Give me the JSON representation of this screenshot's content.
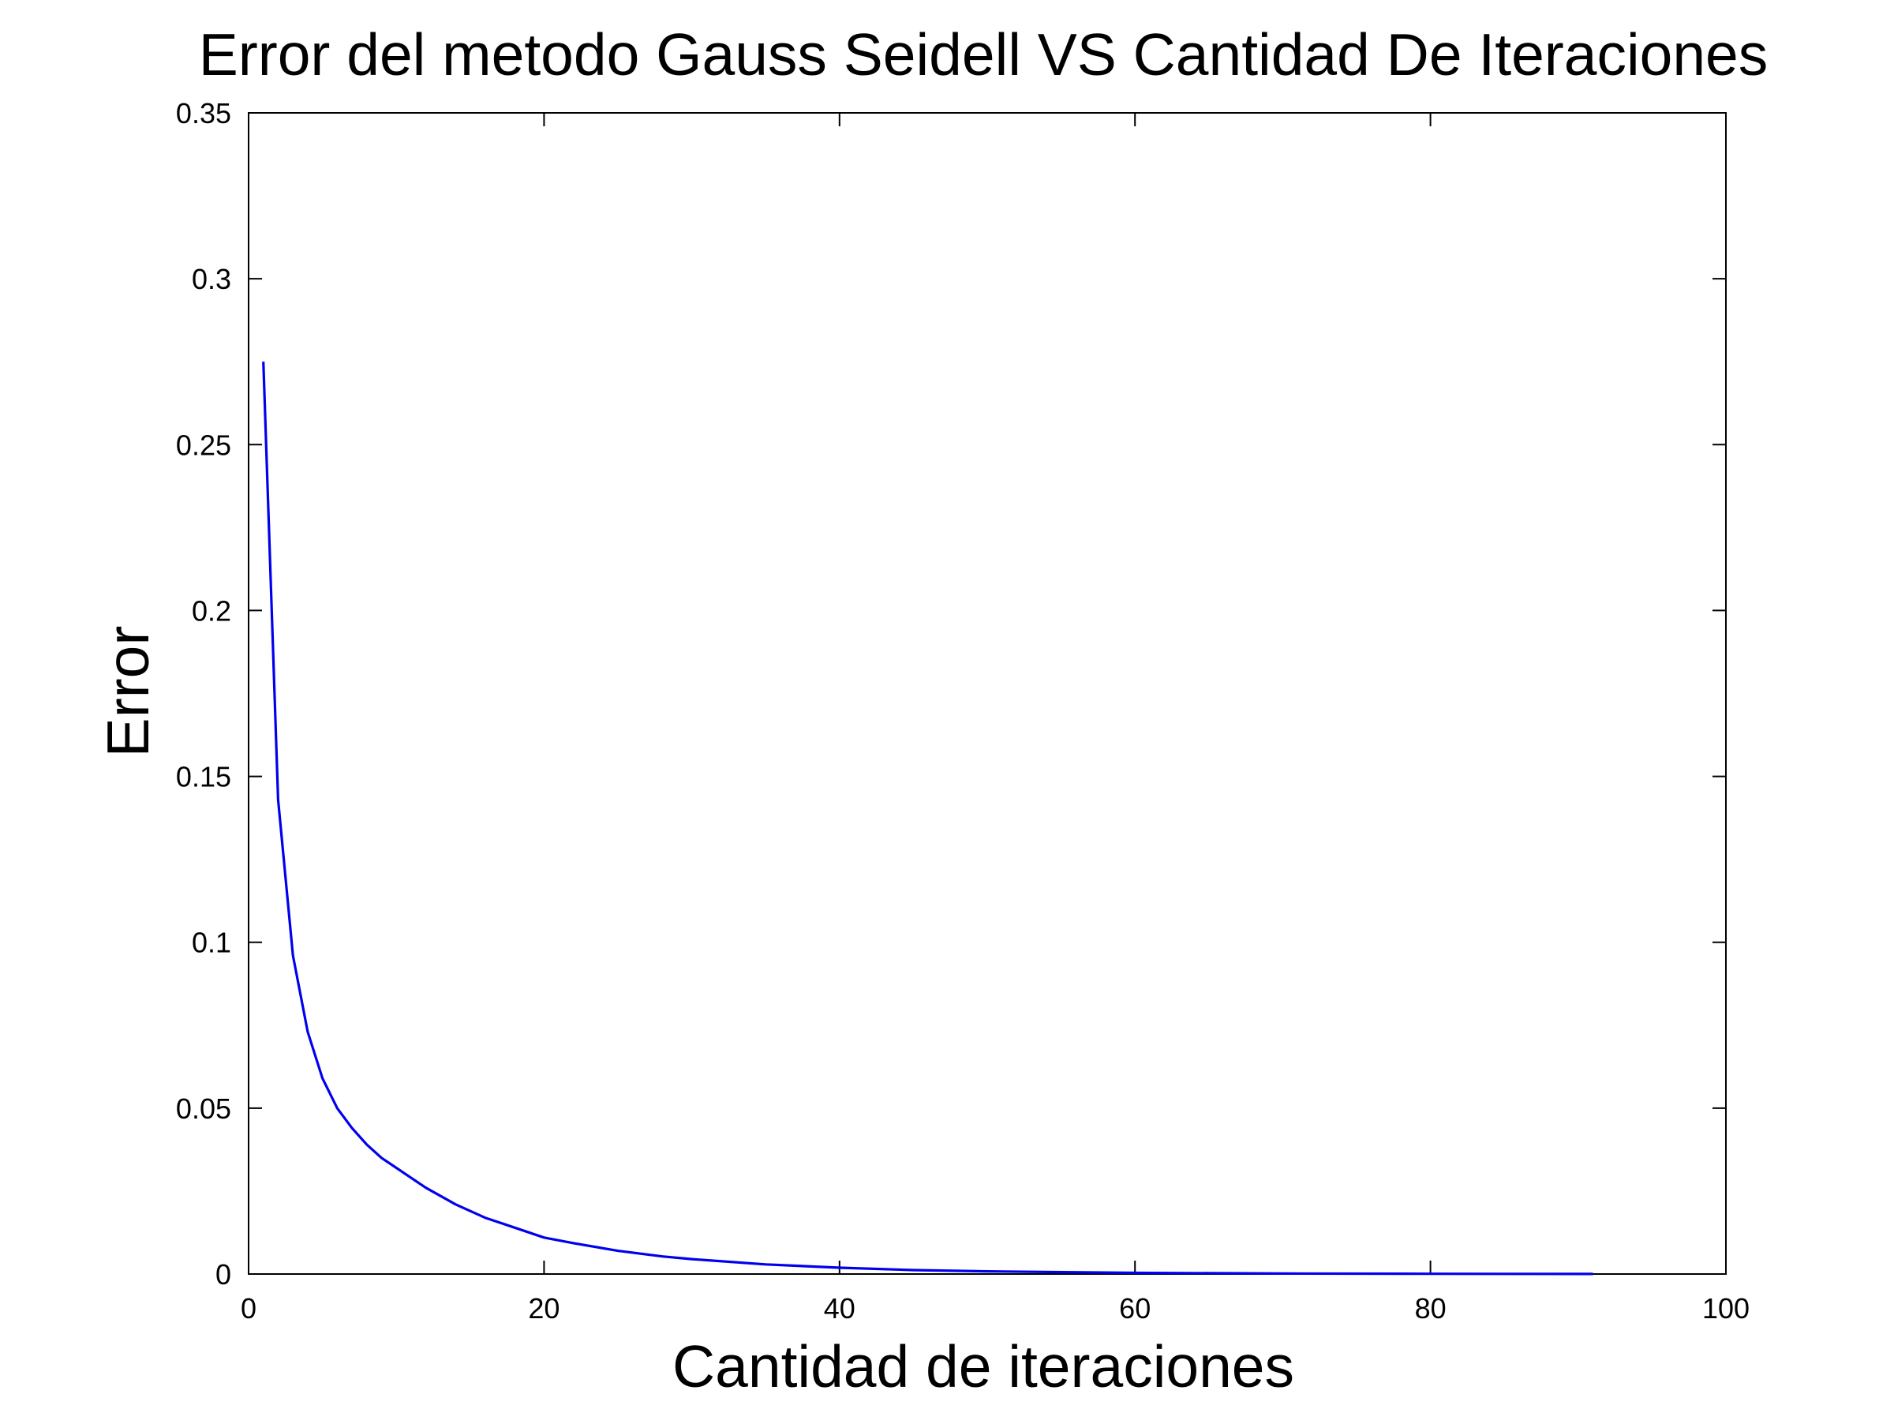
{
  "chart_data": {
    "type": "line",
    "title": "Error del metodo Gauss Seidell VS Cantidad De Iteraciones",
    "xlabel": "Cantidad de iteraciones",
    "ylabel": "Error",
    "xlim": [
      0,
      100
    ],
    "ylim": [
      0,
      0.35
    ],
    "x_ticks": [
      0,
      20,
      40,
      60,
      80,
      100
    ],
    "x_tick_labels": [
      "0",
      "20",
      "40",
      "60",
      "80",
      "100"
    ],
    "y_ticks": [
      0,
      0.05,
      0.1,
      0.15,
      0.2,
      0.25,
      0.3,
      0.35
    ],
    "y_tick_labels": [
      "0",
      "0.05",
      "0.1",
      "0.15",
      "0.2",
      "0.25",
      "0.3",
      "0.35"
    ],
    "grid": false,
    "line_color": "#0000ee",
    "series": [
      {
        "x": [
          1,
          2,
          3,
          4,
          5,
          6,
          7,
          8,
          9,
          10,
          12,
          14,
          16,
          18,
          20,
          22,
          25,
          28,
          30,
          35,
          40,
          45,
          50,
          60,
          70,
          80,
          91
        ],
        "y": [
          0.275,
          0.143,
          0.096,
          0.073,
          0.059,
          0.05,
          0.044,
          0.039,
          0.035,
          0.032,
          0.026,
          0.021,
          0.017,
          0.014,
          0.011,
          0.0093,
          0.007,
          0.0053,
          0.0045,
          0.0029,
          0.0019,
          0.0012,
          0.0008,
          0.00035,
          0.00015,
          6e-05,
          2e-05
        ]
      }
    ]
  }
}
